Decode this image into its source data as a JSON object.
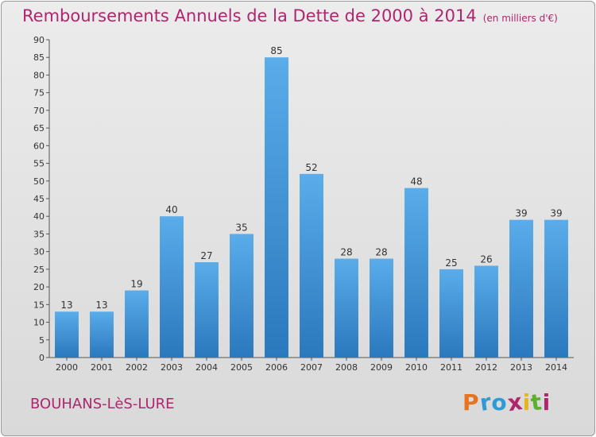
{
  "chart_data": {
    "type": "bar",
    "title": "Remboursements Annuels de la Dette de 2000 à 2014",
    "subtitle": "(en milliers d'€)",
    "categories": [
      "2000",
      "2001",
      "2002",
      "2003",
      "2004",
      "2005",
      "2006",
      "2007",
      "2008",
      "2009",
      "2010",
      "2011",
      "2012",
      "2013",
      "2014"
    ],
    "values": [
      13,
      13,
      19,
      40,
      27,
      35,
      85,
      52,
      28,
      28,
      48,
      25,
      26,
      39,
      39
    ],
    "ylim": [
      0,
      90
    ],
    "yticks": [
      0,
      5,
      10,
      15,
      20,
      25,
      30,
      35,
      40,
      45,
      50,
      55,
      60,
      65,
      70,
      75,
      80,
      85,
      90
    ],
    "xlabel": "",
    "ylabel": "",
    "grid": false,
    "bar_color": "#3a8fd6"
  },
  "footer": {
    "city": "BOUHANS-LèS-LURE",
    "logo_text": "Proxiti",
    "logo_colors": [
      "#e8731e",
      "#2e9ad6",
      "#2e9ad6",
      "#b0256e",
      "#e8b51e",
      "#5fae2e",
      "#b0256e"
    ]
  }
}
